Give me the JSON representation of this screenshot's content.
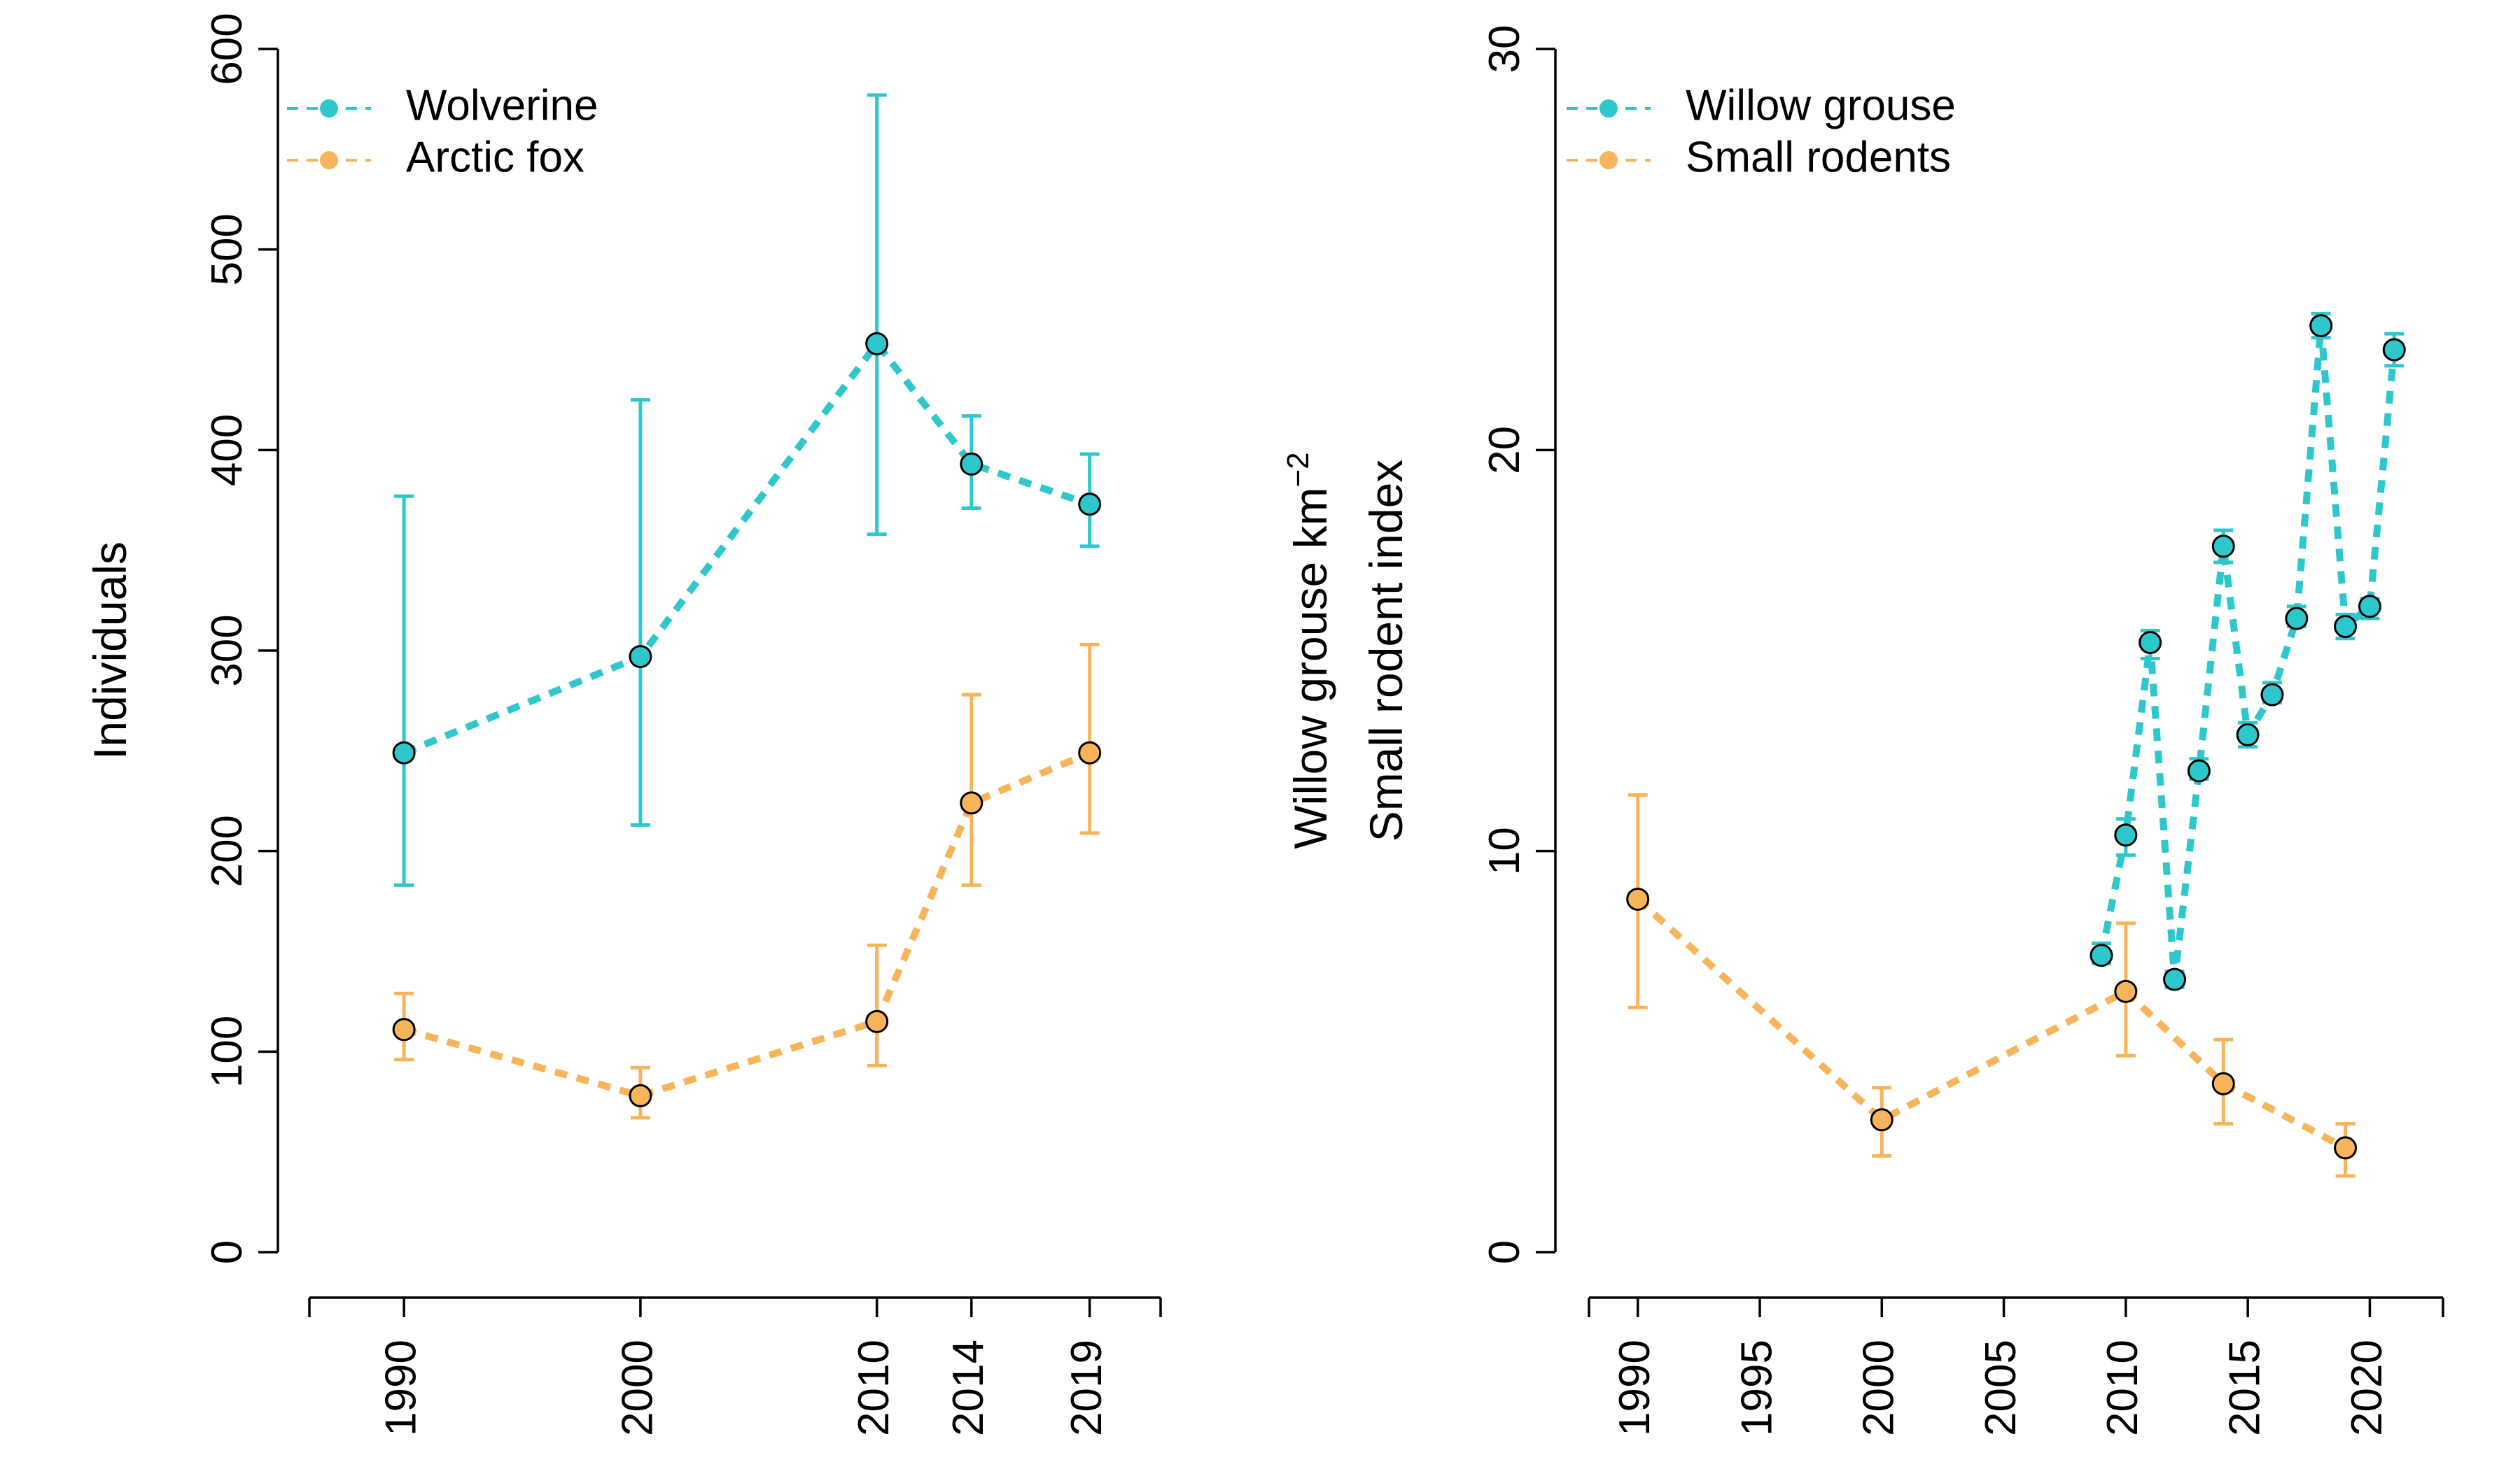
{
  "chart_data": [
    {
      "type": "line",
      "ylabel": "Individuals",
      "ylim": [
        0,
        600
      ],
      "yticks": [
        0,
        100,
        200,
        300,
        400,
        500,
        600
      ],
      "xlim": [
        1986,
        2022
      ],
      "xticks": [
        1990,
        2000,
        2010,
        2014,
        2019
      ],
      "legend_position": "top-left",
      "series": [
        {
          "name": "Wolverine",
          "color": "#2ec7cc",
          "x": [
            1990,
            2000,
            2010,
            2014,
            2019
          ],
          "y": [
            249,
            297,
            453,
            393,
            373
          ],
          "err_low": [
            183,
            213,
            358,
            371,
            352
          ],
          "err_high": [
            377,
            425,
            577,
            417,
            398
          ]
        },
        {
          "name": "Arctic fox",
          "color": "#f8b45b",
          "x": [
            1990,
            2000,
            2010,
            2014,
            2019
          ],
          "y": [
            111,
            78,
            115,
            224,
            249
          ],
          "err_low": [
            96,
            67,
            93,
            183,
            209
          ],
          "err_high": [
            129,
            92,
            153,
            278,
            303
          ]
        }
      ]
    },
    {
      "type": "line",
      "ylabel_lines": [
        "Willow grouse  km",
        "Small rodent index"
      ],
      "ylabel_superscript": "−2",
      "ylim": [
        0,
        30
      ],
      "yticks": [
        0,
        10,
        20,
        30
      ],
      "xlim": [
        1988,
        2023
      ],
      "xticks": [
        1990,
        1995,
        2000,
        2005,
        2010,
        2015,
        2020
      ],
      "legend_position": "top-left",
      "series": [
        {
          "name": "Willow grouse",
          "color": "#2ec7cc",
          "x": [
            2009,
            2010,
            2011,
            2012,
            2013,
            2014,
            2015,
            2016,
            2017,
            2018,
            2019,
            2020,
            2021
          ],
          "y": [
            7.4,
            10.4,
            15.2,
            6.8,
            12.0,
            17.6,
            12.9,
            13.9,
            15.8,
            23.1,
            15.6,
            16.1,
            22.5
          ],
          "err_low": [
            7.2,
            9.9,
            14.8,
            6.6,
            11.8,
            17.2,
            12.6,
            13.7,
            15.6,
            22.8,
            15.3,
            15.8,
            22.1
          ],
          "err_high": [
            7.7,
            10.8,
            15.5,
            7.0,
            12.3,
            18.0,
            13.2,
            14.2,
            16.1,
            23.4,
            15.9,
            16.3,
            22.9
          ]
        },
        {
          "name": "Small rodents",
          "color": "#f8b45b",
          "x": [
            1990,
            2000,
            2010,
            2014,
            2019
          ],
          "y": [
            8.8,
            3.3,
            6.5,
            4.2,
            2.6
          ],
          "err_low": [
            6.1,
            2.4,
            4.9,
            3.2,
            1.9
          ],
          "err_high": [
            11.4,
            4.1,
            8.2,
            5.3,
            3.2
          ]
        }
      ]
    }
  ]
}
